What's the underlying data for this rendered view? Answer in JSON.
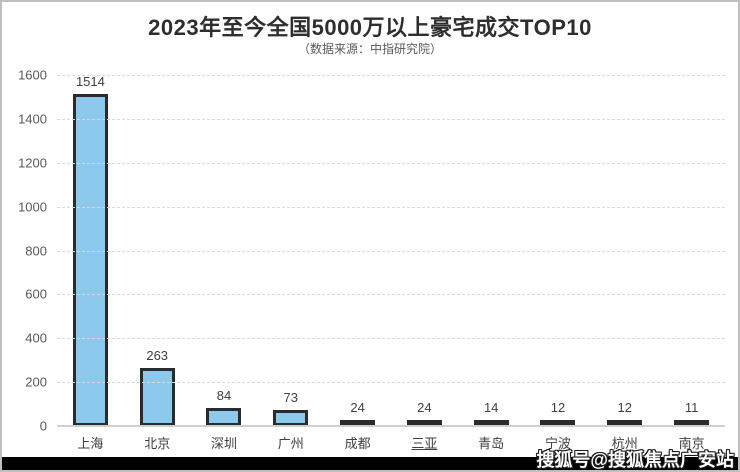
{
  "chart_data": {
    "type": "bar",
    "title": "2023年至今全国5000万以上豪宅成交TOP10",
    "subtitle": "（数据来源：中指研究院）",
    "categories": [
      "上海",
      "北京",
      "深圳",
      "广州",
      "成都",
      "三亚",
      "青岛",
      "宁波",
      "杭州",
      "南京"
    ],
    "values": [
      1514,
      263,
      84,
      73,
      24,
      24,
      14,
      12,
      12,
      11
    ],
    "underlined_categories": [
      "三亚"
    ],
    "xlabel": "",
    "ylabel": "",
    "ylim": [
      0,
      1600
    ],
    "y_ticks": [
      0,
      200,
      400,
      600,
      800,
      1000,
      1200,
      1400,
      1600
    ],
    "grid": "horizontal-dashed",
    "legend": "none",
    "colors": {
      "bar_fill": "#8DC9EC",
      "bar_border": "#2B2B2B",
      "grid_line": "#D9D9D9",
      "axis_line": "#CFCFCF",
      "title_text": "#2E2E2E",
      "subtitle_text": "#595959",
      "tick_text": "#595959",
      "value_text": "#404040",
      "category_text": "#404040",
      "frame_border": "#BFBFBF",
      "bottom_strip": "#000000"
    }
  },
  "watermark": {
    "text": "搜狐号@搜狐焦点广安站"
  }
}
